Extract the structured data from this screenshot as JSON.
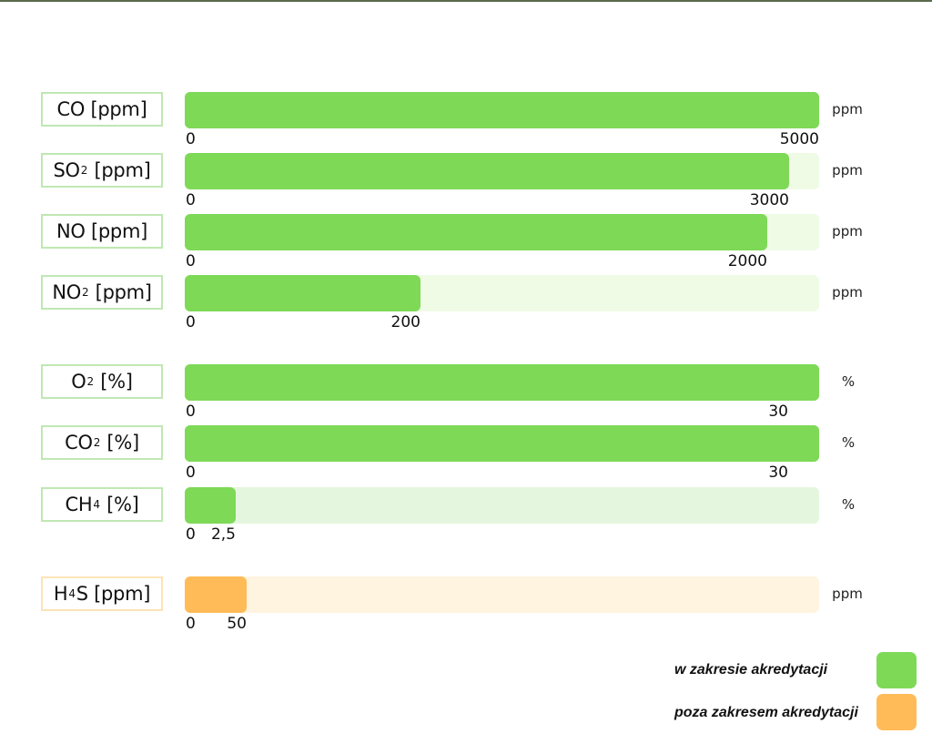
{
  "colors": {
    "in_scope": "#7ed957",
    "in_scope_track": "#f0fbe6",
    "in_scope_track_alt": "#e5f6df",
    "out_scope": "#ffbb58",
    "out_scope_track": "#fff4df"
  },
  "chart_data": {
    "type": "bar",
    "orientation": "horizontal",
    "grid": false,
    "legend_position": "bottom-right",
    "bars": [
      {
        "gas": "CO",
        "sub": "",
        "unit_bracket": "[ppm]",
        "unit": "ppm",
        "min_label": "0",
        "max_label": "5000",
        "value": 5000,
        "fill_fraction": 1.0,
        "category": "in_scope"
      },
      {
        "gas": "SO",
        "sub": "2",
        "unit_bracket": "[ppm]",
        "unit": "ppm",
        "min_label": "0",
        "max_label": "3000",
        "value": 3000,
        "fill_fraction": 0.952,
        "category": "in_scope"
      },
      {
        "gas": "NO",
        "sub": "",
        "unit_bracket": "[ppm]",
        "unit": "ppm",
        "min_label": "0",
        "max_label": "2000",
        "value": 2000,
        "fill_fraction": 0.918,
        "category": "in_scope"
      },
      {
        "gas": "NO",
        "sub": "2",
        "unit_bracket": "[ppm]",
        "unit": "ppm",
        "min_label": "0",
        "max_label": "200",
        "value": 200,
        "fill_fraction": 0.372,
        "category": "in_scope"
      },
      {
        "gas": "O",
        "sub": "2",
        "unit_bracket": "[%]",
        "unit": "%",
        "min_label": "0",
        "max_label": "30",
        "value": 30,
        "fill_fraction": 1.0,
        "category": "in_scope"
      },
      {
        "gas": "CO",
        "sub": "2",
        "unit_bracket": "[%]",
        "unit": "%",
        "min_label": "0",
        "max_label": "30",
        "value": 30,
        "fill_fraction": 1.0,
        "category": "in_scope"
      },
      {
        "gas": "CH",
        "sub": "4",
        "unit_bracket": "[%]",
        "unit": "%",
        "min_label": "0",
        "max_label": "2,5",
        "value": 2.5,
        "fill_fraction": 0.08,
        "category": "in_scope"
      },
      {
        "gas": "H",
        "sub": "4",
        "gas_suffix": "S",
        "unit_bracket": "[ppm]",
        "unit": "ppm",
        "min_label": "0",
        "max_label": "50",
        "value": 50,
        "fill_fraction": 0.097,
        "category": "out_scope"
      }
    ],
    "legend": [
      {
        "label": "w zakresie akredytacji",
        "category": "in_scope"
      },
      {
        "label": "poza zakresem akredytacji",
        "category": "out_scope"
      }
    ]
  }
}
